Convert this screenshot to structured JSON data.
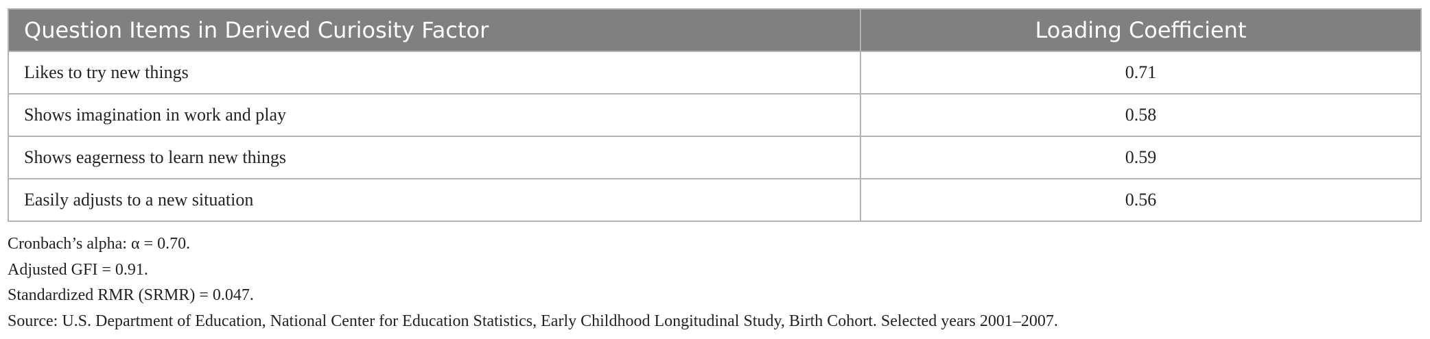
{
  "table": {
    "header": [
      "Question Items in Derived Curiosity Factor",
      "Loading Coefficient"
    ],
    "rows": [
      [
        "Likes to try new things",
        "0.71"
      ],
      [
        "Shows imagination in work and play",
        "0.58"
      ],
      [
        "Shows eagerness to learn new things",
        "0.59"
      ],
      [
        "Easily adjusts to a new situation",
        "0.56"
      ]
    ]
  },
  "notes": [
    "Cronbach’s alpha: α  = 0.70.",
    "Adjusted GFI = 0.91.",
    "Standardized RMR (SRMR) = 0.047.",
    "Source: U.S. Department of Education, National Center for Education Statistics, Early Childhood Longitudinal Study, Birth Cohort. Selected years 2001–2007."
  ]
}
